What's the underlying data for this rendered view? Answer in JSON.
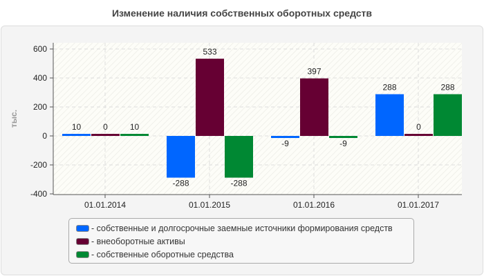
{
  "chart_data": {
    "type": "bar",
    "title": "Изменение наличия собственных оборотных средств",
    "ylabel": "тыс.",
    "xlabel": "",
    "categories": [
      "01.01.2014",
      "01.01.2015",
      "01.01.2016",
      "01.01.2017"
    ],
    "ylim": [
      -400,
      600
    ],
    "yticks": [
      600,
      400,
      200,
      0,
      -200,
      -400
    ],
    "grid": true,
    "legend_position": "bottom",
    "series": [
      {
        "name": "- собственные и долгосрочные заемные источники формирования средств",
        "color": "#0066ff",
        "values": [
          10,
          -288,
          -9,
          288
        ]
      },
      {
        "name": "- внеоборотные активы",
        "color": "#660033",
        "values": [
          0,
          533,
          397,
          0
        ]
      },
      {
        "name": "- собственные оборотные средства",
        "color": "#008833",
        "values": [
          10,
          -288,
          -9,
          288
        ]
      }
    ]
  }
}
